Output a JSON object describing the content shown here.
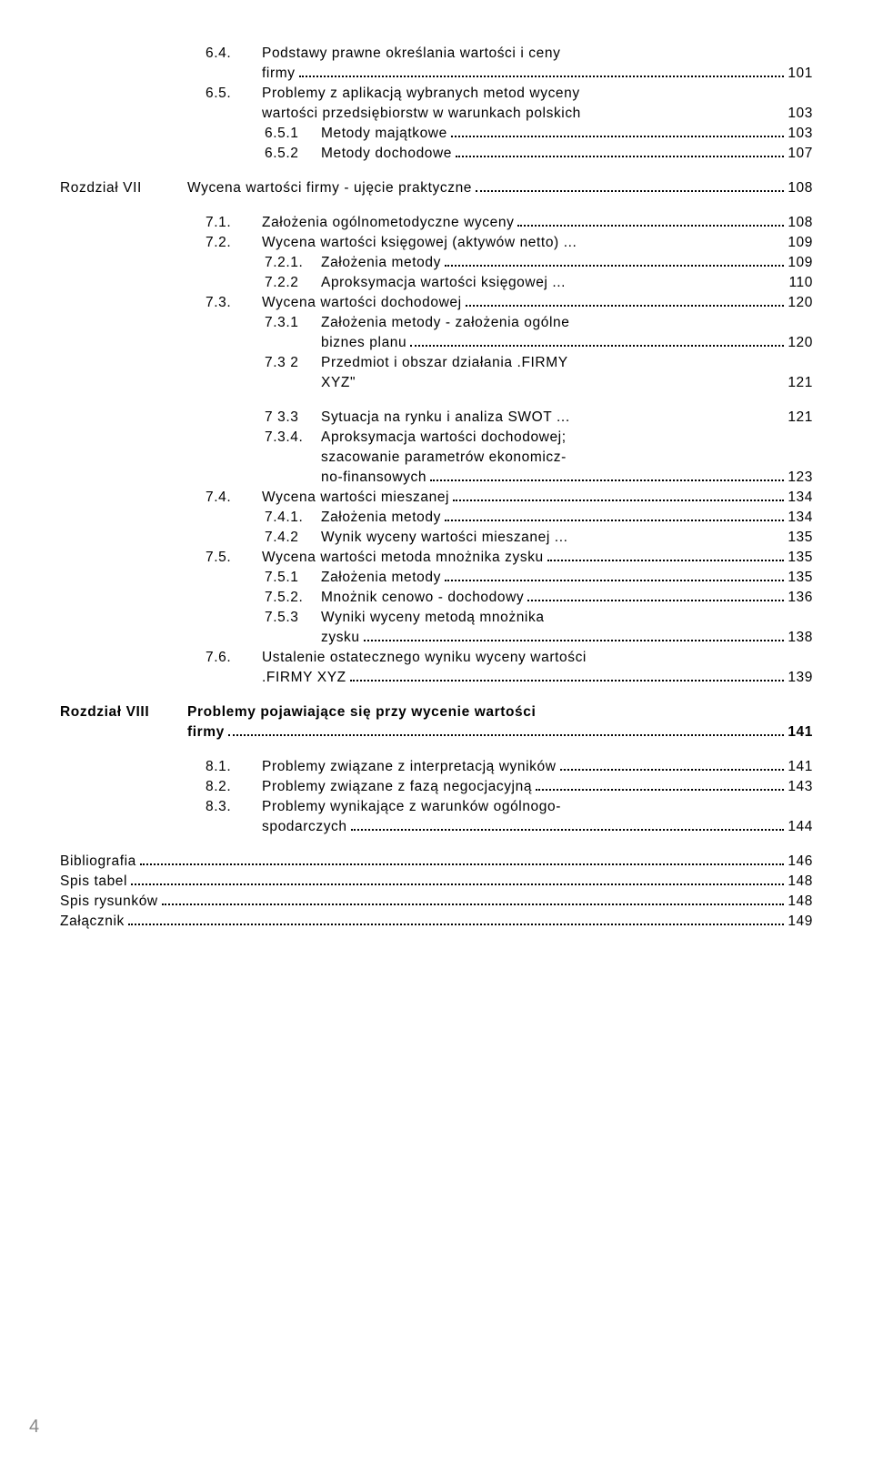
{
  "background_color": "#ffffff",
  "text_color": "#000000",
  "font_family": "Arial",
  "base_fontsize": 15.5,
  "letter_spacing": 0.6,
  "page_number": "4",
  "indent": {
    "l0": 160,
    "l1": 225,
    "l2": 290,
    "chap": 0
  },
  "col": {
    "num0": 62,
    "num1": 62,
    "num2": 78,
    "chap": 140
  },
  "lines": [
    {
      "lvl": "l0",
      "n": "6.4.",
      "t": "Podstawy prawne określania wartości i ceny"
    },
    {
      "lvl": "l0",
      "cont": true,
      "t": "firmy",
      "p": "101"
    },
    {
      "lvl": "l0",
      "n": "6.5.",
      "t": "Problemy z aplikacją wybranych metod wyceny"
    },
    {
      "lvl": "l0",
      "cont": true,
      "t": "wartości przedsiębiorstw w warunkach polskich",
      "p": "103",
      "nodots": true
    },
    {
      "lvl": "l1",
      "n": "6.5.1",
      "t": "Metody majątkowe",
      "p": "103"
    },
    {
      "lvl": "l1",
      "n": "6.5.2",
      "t": "Metody dochodowe",
      "p": "107"
    },
    {
      "gap": 16
    },
    {
      "lvl": "chap",
      "n": "Rozdział VII",
      "t": "Wycena wartości firmy - ujęcie praktyczne",
      "p": "108"
    },
    {
      "gap": 16
    },
    {
      "lvl": "l0",
      "n": "7.1.",
      "t": "Założenia ogólnometodyczne wyceny",
      "p": "108"
    },
    {
      "lvl": "l0",
      "n": "7.2.",
      "t": "Wycena wartości księgowej (aktywów netto) ...",
      "p": "109",
      "nodots": true
    },
    {
      "lvl": "l1",
      "n": "7.2.1.",
      "t": "Założenia metody",
      "p": "109"
    },
    {
      "lvl": "l1",
      "n": "7.2.2",
      "t": "Aproksymacja wartości księgowej ...",
      "p": "110",
      "nodots": true
    },
    {
      "lvl": "l0",
      "n": "7.3.",
      "t": "Wycena wartości dochodowej",
      "p": "120"
    },
    {
      "lvl": "l1",
      "n": "7.3.1",
      "t": "Założenia metody - założenia ogólne"
    },
    {
      "lvl": "l1",
      "cont": true,
      "t": "biznes planu",
      "p": "120"
    },
    {
      "lvl": "l1",
      "n": "7.3 2",
      "t": "Przedmiot i obszar działania .FIRMY"
    },
    {
      "lvl": "l1",
      "cont": true,
      "t": "XYZ\"",
      "p": "121",
      "nodots": true
    },
    {
      "gap": 16
    },
    {
      "lvl": "l1",
      "n": "7 3.3",
      "t": "Sytuacja na rynku i analiza SWOT ...",
      "p": "121",
      "nodots": true
    },
    {
      "lvl": "l1",
      "n": "7.3.4.",
      "t": "Aproksymacja wartości dochodowej;"
    },
    {
      "lvl": "l1",
      "cont": true,
      "t": "szacowanie parametrów ekonomicz-"
    },
    {
      "lvl": "l1",
      "cont": true,
      "t": "no-finansowych",
      "p": "123"
    },
    {
      "lvl": "l0",
      "n": "7.4.",
      "t": "Wycena wartości mieszanej",
      "p": "134"
    },
    {
      "lvl": "l1",
      "n": "7.4.1.",
      "t": "Założenia metody",
      "p": "134"
    },
    {
      "lvl": "l1",
      "n": "7.4.2",
      "t": "Wynik wyceny wartości mieszanej ...",
      "p": "135",
      "nodots": true
    },
    {
      "lvl": "l0",
      "n": "7.5.",
      "t": "Wycena wartości metoda mnożnika zysku",
      "p": "135"
    },
    {
      "lvl": "l1",
      "n": "7.5.1",
      "t": "Założenia metody",
      "p": "135"
    },
    {
      "lvl": "l1",
      "n": "7.5.2.",
      "t": "Mnożnik cenowo - dochodowy",
      "p": "136"
    },
    {
      "lvl": "l1",
      "n": "7.5.3",
      "t": "Wyniki wyceny metodą mnożnika"
    },
    {
      "lvl": "l1",
      "cont": true,
      "t": "zysku",
      "p": "138"
    },
    {
      "lvl": "l0",
      "n": "7.6.",
      "t": "Ustalenie ostatecznego wyniku wyceny wartości"
    },
    {
      "lvl": "l0",
      "cont": true,
      "t": ".FIRMY XYZ",
      "p": "139"
    },
    {
      "gap": 16
    },
    {
      "lvl": "chap",
      "n": "Rozdział VIII",
      "t": "Problemy pojawiające się przy wycenie wartości",
      "bold": true
    },
    {
      "lvl": "chap",
      "cont": true,
      "t": "firmy",
      "p": "141",
      "bold": true
    },
    {
      "gap": 16
    },
    {
      "lvl": "l0",
      "n": "8.1.",
      "t": "Problemy związane z interpretacją wyników",
      "p": "141"
    },
    {
      "lvl": "l0",
      "n": "8.2.",
      "t": "Problemy związane z fazą negocjacyjną",
      "p": "143"
    },
    {
      "lvl": "l0",
      "n": "8.3.",
      "t": "Problemy wynikające z warunków ogólnogo-"
    },
    {
      "lvl": "l0",
      "cont": true,
      "t": "spodarczych",
      "p": "144"
    },
    {
      "gap": 16
    },
    {
      "lvl": "bib",
      "t": "Bibliografia",
      "p": "146"
    },
    {
      "lvl": "bib",
      "t": "Spis tabel",
      "p": "148"
    },
    {
      "lvl": "bib",
      "t": "Spis rysunków",
      "p": "148"
    },
    {
      "lvl": "bib",
      "t": "Załącznik",
      "p": "149"
    }
  ]
}
